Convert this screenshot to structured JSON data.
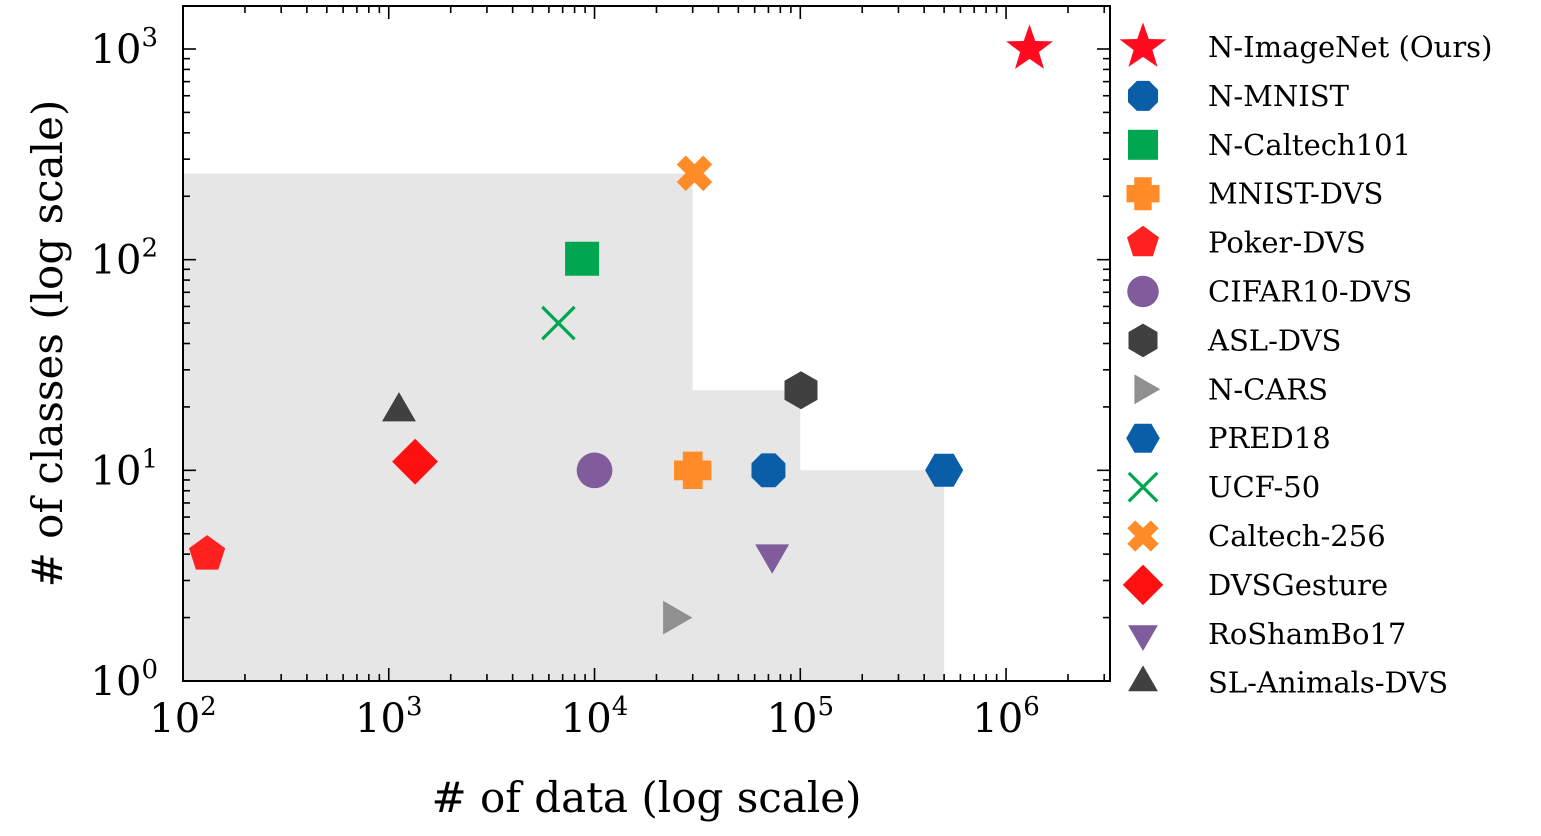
{
  "chart_data": {
    "type": "scatter",
    "xlabel": "# of data (log scale)",
    "ylabel": "# of classes (log scale)",
    "x_scale": "log",
    "y_scale": "log",
    "xlim": [
      100,
      3200000
    ],
    "ylim": [
      1,
      1600
    ],
    "x_ticks": [
      {
        "value": 100,
        "base": "10",
        "exp": "2"
      },
      {
        "value": 1000,
        "base": "10",
        "exp": "3"
      },
      {
        "value": 10000,
        "base": "10",
        "exp": "4"
      },
      {
        "value": 100000,
        "base": "10",
        "exp": "5"
      },
      {
        "value": 1000000,
        "base": "10",
        "exp": "6"
      }
    ],
    "y_ticks": [
      {
        "value": 1,
        "base": "10",
        "exp": "0"
      },
      {
        "value": 10,
        "base": "10",
        "exp": "1"
      },
      {
        "value": 100,
        "base": "10",
        "exp": "2"
      },
      {
        "value": 1000,
        "base": "10",
        "exp": "3"
      }
    ],
    "grid": false,
    "legend_position": "right-outside",
    "shaded_region": {
      "color": "#e6e6e6",
      "outline": [
        [
          100,
          1
        ],
        [
          100,
          256
        ],
        [
          30000,
          256
        ],
        [
          30000,
          24
        ],
        [
          100000,
          24
        ],
        [
          100000,
          10
        ],
        [
          500000,
          10
        ],
        [
          500000,
          1
        ]
      ]
    },
    "series": [
      {
        "name": "N-ImageNet (Ours)",
        "marker": "star",
        "color": "#ff0a1f",
        "x": 1300000,
        "y": 1000
      },
      {
        "name": "N-MNIST",
        "marker": "octagon",
        "color": "#0a5ea8",
        "x": 70000,
        "y": 10
      },
      {
        "name": "N-Caltech101",
        "marker": "square",
        "color": "#00a650",
        "x": 8700,
        "y": 101
      },
      {
        "name": "MNIST-DVS",
        "marker": "plus",
        "color": "#ff8c28",
        "x": 30000,
        "y": 10
      },
      {
        "name": "Poker-DVS",
        "marker": "pentagon",
        "color": "#ff2020",
        "x": 131,
        "y": 4
      },
      {
        "name": "CIFAR10-DVS",
        "marker": "circle",
        "color": "#805c9c",
        "x": 10000,
        "y": 10
      },
      {
        "name": "ASL-DVS",
        "marker": "hexagon",
        "color": "#404040",
        "x": 100800,
        "y": 24
      },
      {
        "name": "N-CARS",
        "marker": "triangle-right",
        "color": "#909090",
        "x": 24029,
        "y": 2
      },
      {
        "name": "PRED18",
        "marker": "hexagon-flat",
        "color": "#0a5ea8",
        "x": 500000,
        "y": 10
      },
      {
        "name": "UCF-50",
        "marker": "x",
        "color": "#00a650",
        "x": 6676,
        "y": 50
      },
      {
        "name": "Caltech-256",
        "marker": "x-filled",
        "color": "#ff8c28",
        "x": 30607,
        "y": 257
      },
      {
        "name": "DVSGesture",
        "marker": "diamond",
        "color": "#ff1010",
        "x": 1342,
        "y": 11
      },
      {
        "name": "RoShamBo17",
        "marker": "triangle-down",
        "color": "#805c9c",
        "x": 73000,
        "y": 4
      },
      {
        "name": "SL-Animals-DVS",
        "marker": "triangle-up",
        "color": "#404040",
        "x": 1121,
        "y": 19
      }
    ]
  }
}
